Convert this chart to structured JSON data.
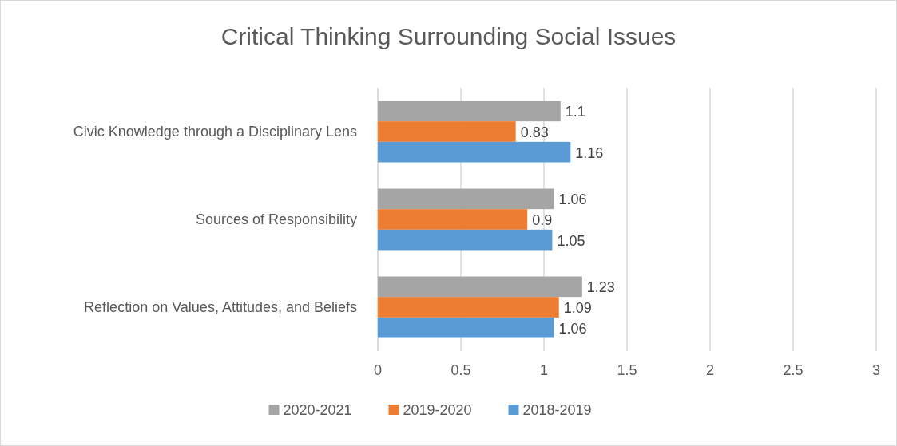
{
  "chart_data": {
    "type": "bar",
    "orientation": "horizontal",
    "title": "Critical Thinking Surrounding Social Issues",
    "categories": [
      "Civic Knowledge through a Disciplinary Lens",
      "Sources of Responsibility",
      "Reflection on Values, Attitudes, and Beliefs"
    ],
    "series": [
      {
        "name": "2020-2021",
        "color": "#a5a5a5",
        "values": [
          1.1,
          1.06,
          1.23
        ]
      },
      {
        "name": "2019-2020",
        "color": "#ed7d31",
        "values": [
          0.83,
          0.9,
          1.09
        ]
      },
      {
        "name": "2018-2019",
        "color": "#5b9bd5",
        "values": [
          1.16,
          1.05,
          1.06
        ]
      }
    ],
    "xlim": [
      0,
      3
    ],
    "xticks": [
      0,
      0.5,
      1,
      1.5,
      2,
      2.5,
      3
    ],
    "grid": "x",
    "data_labels": true,
    "legend": "bottom"
  }
}
